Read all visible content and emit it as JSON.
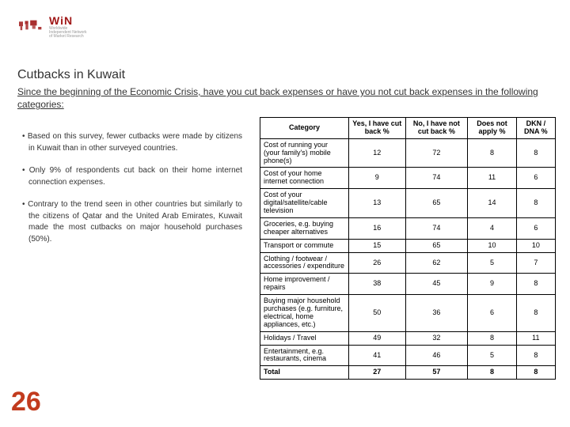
{
  "logo": {
    "brand": "WiN",
    "tagline1": "Worldwide",
    "tagline2": "Independent Network",
    "tagline3": "of Market Research",
    "map_color": "#a01818"
  },
  "title": "Cutbacks in Kuwait",
  "subtitle": "Since the beginning of the Economic Crisis, have you cut back expenses or have you not cut back expenses in the following categories:",
  "bullets": [
    "Based on this survey, fewer cutbacks were made by citizens in Kuwait than in other surveyed countries.",
    "Only 9% of respondents cut back on their home internet connection expenses.",
    "Contrary to the trend seen in other countries but similarly to the citizens of Qatar and the United Arab Emirates, Kuwait made the most cutbacks on major household purchases (50%)."
  ],
  "page_number": "26",
  "table": {
    "type": "table",
    "header_background": "#ffffff",
    "border_color": "#000000",
    "font_size": 9,
    "columns": [
      "Category",
      "Yes, I have cut back %",
      "No, I have not cut back %",
      "Does not apply %",
      "DKN / DNA %"
    ],
    "rows": [
      [
        "Cost of running your (your family's) mobile phone(s)",
        "12",
        "72",
        "8",
        "8"
      ],
      [
        "Cost of your home internet connection",
        "9",
        "74",
        "11",
        "6"
      ],
      [
        "Cost of your digital/satellite/cable television",
        "13",
        "65",
        "14",
        "8"
      ],
      [
        "Groceries, e.g. buying cheaper alternatives",
        "16",
        "74",
        "4",
        "6"
      ],
      [
        "Transport or commute",
        "15",
        "65",
        "10",
        "10"
      ],
      [
        "Clothing / footwear / accessories / expenditure",
        "26",
        "62",
        "5",
        "7"
      ],
      [
        "Home improvement / repairs",
        "38",
        "45",
        "9",
        "8"
      ],
      [
        "Buying major household purchases (e.g. furniture, electrical, home appliances, etc.)",
        "50",
        "36",
        "6",
        "8"
      ],
      [
        "Holidays / Travel",
        "49",
        "32",
        "8",
        "11"
      ],
      [
        "Entertainment, e.g. restaurants, cinema",
        "41",
        "46",
        "5",
        "8"
      ]
    ],
    "total_row": [
      "Total",
      "27",
      "57",
      "8",
      "8"
    ]
  },
  "colors": {
    "brand": "#a01818",
    "page_num": "#c23b1e",
    "text": "#333333",
    "background": "#ffffff"
  }
}
